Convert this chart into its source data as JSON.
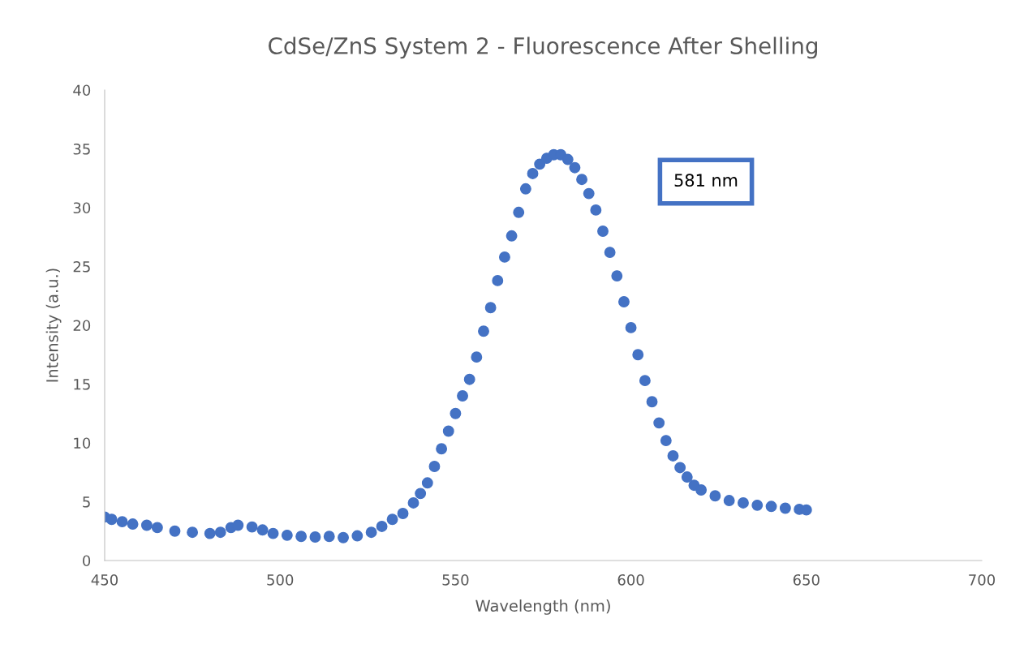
{
  "chart_data": {
    "type": "scatter",
    "title": "CdSe/ZnS System 2 - Fluorescence After Shelling",
    "xlabel": "Wavelength (nm)",
    "ylabel": "Intensity (a.u.)",
    "x": [
      450,
      452,
      455,
      458,
      462,
      465,
      470,
      475,
      480,
      483,
      486,
      488,
      492,
      495,
      498,
      502,
      506,
      510,
      514,
      518,
      522,
      526,
      529,
      532,
      535,
      538,
      540,
      542,
      544,
      546,
      548,
      550,
      552,
      554,
      556,
      558,
      560,
      562,
      564,
      566,
      568,
      570,
      572,
      574,
      576,
      578,
      580,
      582,
      584,
      586,
      588,
      590,
      592,
      594,
      596,
      598,
      600,
      602,
      604,
      606,
      608,
      610,
      612,
      614,
      616,
      618,
      620,
      624,
      628,
      632,
      636,
      640,
      644,
      648,
      650
    ],
    "values": [
      3.7,
      3.5,
      3.3,
      3.1,
      3.0,
      2.8,
      2.5,
      2.4,
      2.3,
      2.4,
      2.8,
      3.0,
      2.85,
      2.6,
      2.3,
      2.15,
      2.05,
      2.0,
      2.05,
      1.95,
      2.1,
      2.4,
      2.9,
      3.5,
      4.0,
      4.9,
      5.7,
      6.6,
      8.0,
      9.5,
      11.0,
      12.5,
      14.0,
      15.4,
      17.3,
      19.5,
      21.5,
      23.8,
      25.8,
      27.6,
      29.6,
      31.6,
      32.9,
      33.7,
      34.2,
      34.5,
      34.5,
      34.1,
      33.4,
      32.4,
      31.2,
      29.8,
      28.0,
      26.2,
      24.2,
      22.0,
      19.8,
      17.5,
      15.3,
      13.5,
      11.7,
      10.2,
      8.9,
      7.9,
      7.1,
      6.4,
      6.0,
      5.5,
      5.1,
      4.9,
      4.7,
      4.6,
      4.45,
      4.35,
      4.3
    ],
    "color": "#4472c4",
    "marker": "circle",
    "xlim": [
      450,
      700
    ],
    "xticks": [
      450,
      500,
      550,
      600,
      650,
      700
    ],
    "ylim": [
      0,
      40
    ],
    "yticks": [
      0,
      5,
      10,
      15,
      20,
      25,
      30,
      35,
      40
    ],
    "grid": false,
    "legend": false,
    "annotations": [
      "581 nm"
    ]
  }
}
